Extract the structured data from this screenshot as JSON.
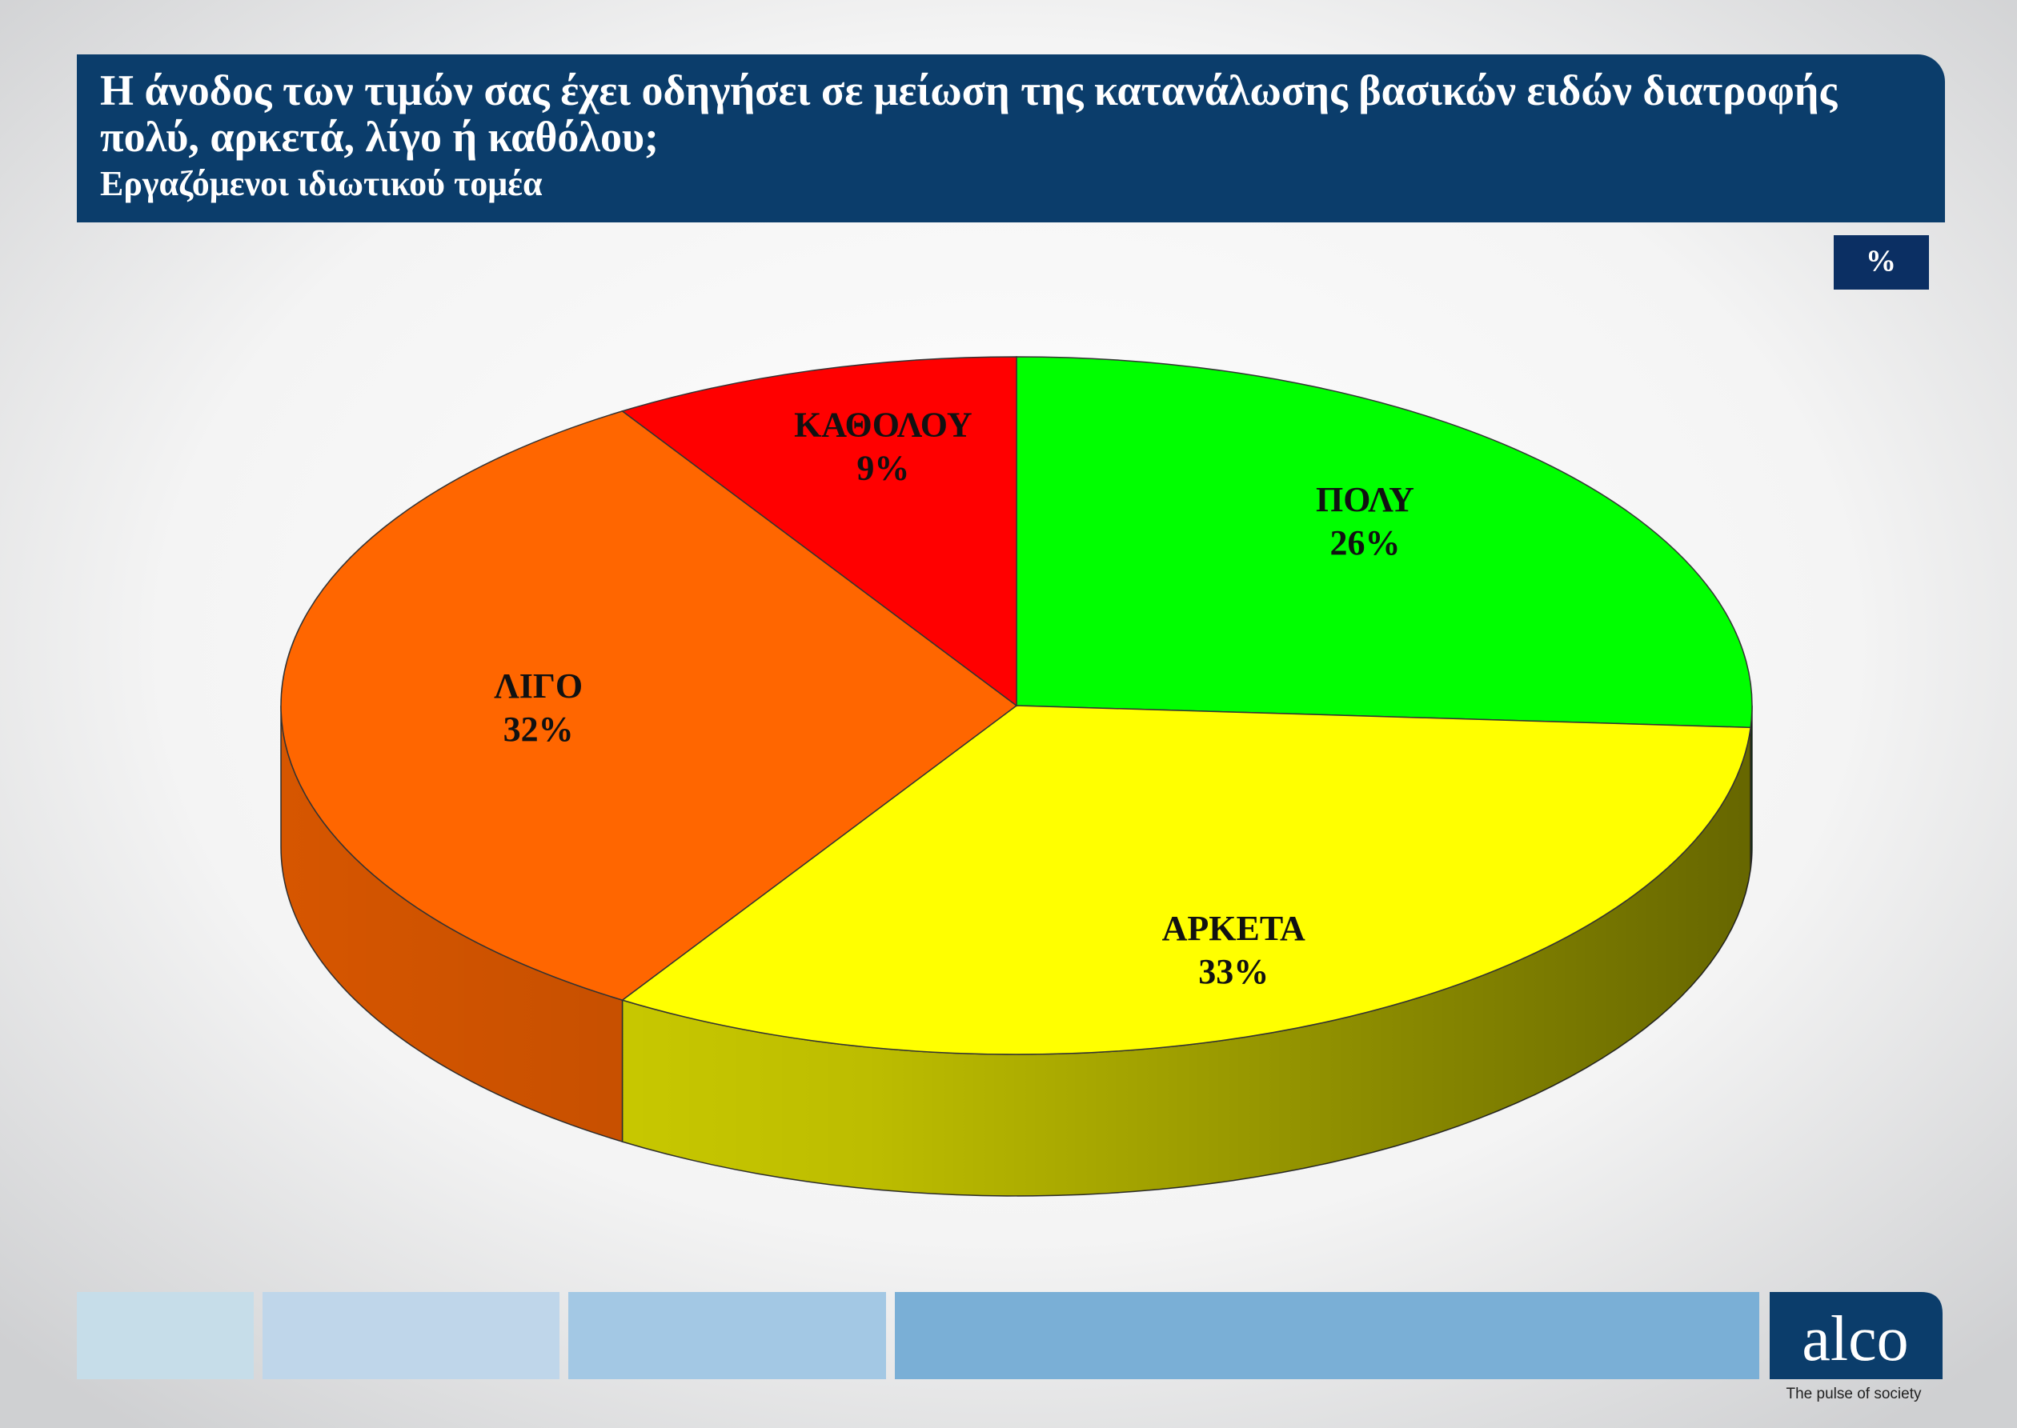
{
  "chart_data": {
    "type": "pie",
    "title": "Η άνοδος των τιμών σας έχει οδηγήσει σε μείωση της κατανάλωσης βασικών ειδών διατροφής πολύ, αρκετά, λίγο ή καθόλου;",
    "subtitle": "Εργαζόμενοι ιδιωτικού τομέα",
    "unit_label": "%",
    "categories": [
      "ΠΟΛΥ",
      "ΑΡΚΕΤΑ",
      "ΛΙΓΟ",
      "ΚΑΘΟΛΟΥ"
    ],
    "values": [
      26,
      33,
      32,
      9
    ],
    "value_labels": [
      "26%",
      "33%",
      "32%",
      "9%"
    ],
    "colors": [
      "#00ff00",
      "#ffff00",
      "#ff6600",
      "#ff0000"
    ]
  },
  "footer": {
    "logo": "alco",
    "tagline": "The pulse of society"
  }
}
